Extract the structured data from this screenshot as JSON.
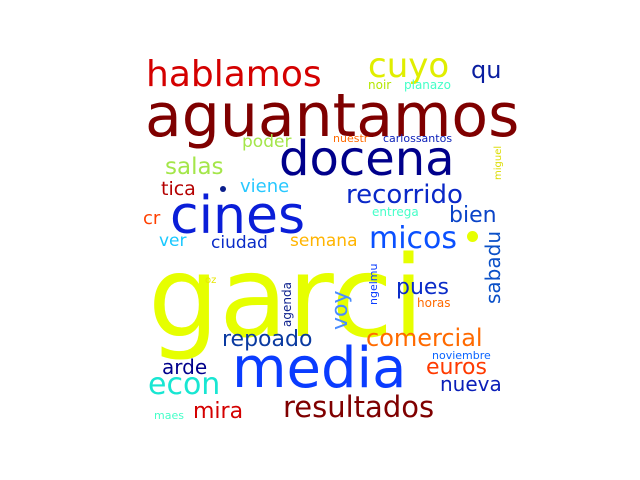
{
  "words": [
    {
      "id": "garci",
      "text": "garci",
      "color": "#e6ff00"
    },
    {
      "id": "aguantamos",
      "text": "aguantamos",
      "color": "#7f0000"
    },
    {
      "id": "media",
      "text": "media",
      "color": "#0a3cff"
    },
    {
      "id": "docena",
      "text": "docena",
      "color": "#00008b"
    },
    {
      "id": "cines",
      "text": "cines",
      "color": "#0a1ed8"
    },
    {
      "id": "hablamos",
      "text": "hablamos",
      "color": "#d40000"
    },
    {
      "id": "cuyo",
      "text": "cuyo",
      "color": "#e0ee00"
    },
    {
      "id": "resultados",
      "text": "resultados",
      "color": "#7f0000"
    },
    {
      "id": "micos",
      "text": "micos",
      "color": "#0a50ff"
    },
    {
      "id": "recorrido",
      "text": "recorrido",
      "color": "#0a28c8"
    },
    {
      "id": "econ",
      "text": "econ",
      "color": "#18e6d2"
    },
    {
      "id": "comercial",
      "text": "comercial",
      "color": "#ff6a00"
    },
    {
      "id": "repoado",
      "text": "repoado",
      "color": "#0a3aa0"
    },
    {
      "id": "salas",
      "text": "salas",
      "color": "#a4e64a"
    },
    {
      "id": "qu",
      "text": "qu",
      "color": "#0a1ea0"
    },
    {
      "id": "bien",
      "text": "bien",
      "color": "#0a44c8"
    },
    {
      "id": "pues",
      "text": "pues",
      "color": "#0a2cc8"
    },
    {
      "id": "euros",
      "text": "euros",
      "color": "#ff3a00"
    },
    {
      "id": "mira",
      "text": "mira",
      "color": "#d40000"
    },
    {
      "id": "voy",
      "text": "voy",
      "color": "#4a8cff"
    },
    {
      "id": "sabadu",
      "text": "sabadu",
      "color": "#0a50c8"
    },
    {
      "id": "nueva",
      "text": "nueva",
      "color": "#0a1eb8"
    },
    {
      "id": "arde",
      "text": "arde",
      "color": "#00008b"
    },
    {
      "id": "tica",
      "text": "tica",
      "color": "#b40000"
    },
    {
      "id": "viene",
      "text": "viene",
      "color": "#28c8ff"
    },
    {
      "id": "poder",
      "text": "poder",
      "color": "#a4e64a"
    },
    {
      "id": "ciudad",
      "text": "ciudad",
      "color": "#0a2cc8"
    },
    {
      "id": "semana",
      "text": "semana",
      "color": "#ffb400"
    },
    {
      "id": "ver",
      "text": "ver",
      "color": "#18c8ff"
    },
    {
      "id": "cr",
      "text": "cr",
      "color": "#ff4000"
    },
    {
      "id": "noir",
      "text": "noir",
      "color": "#b4e600"
    },
    {
      "id": "planazo",
      "text": "planazo",
      "color": "#44ffc8"
    },
    {
      "id": "nuestr",
      "text": "nuestr",
      "color": "#ff6a00"
    },
    {
      "id": "carlossantos",
      "text": "carlossantos",
      "color": "#0a1eb8"
    },
    {
      "id": "miguel",
      "text": "miguel",
      "color": "#dcdc00"
    },
    {
      "id": "entrega",
      "text": "entrega",
      "color": "#44ffc8"
    },
    {
      "id": "agenda",
      "text": "agenda",
      "color": "#0a1e8c"
    },
    {
      "id": "ngelmu",
      "text": "ngelmu",
      "color": "#0a3cff"
    },
    {
      "id": "horas",
      "text": "horas",
      "color": "#ff6a00"
    },
    {
      "id": "oz",
      "text": "oz",
      "color": "#e6e600"
    },
    {
      "id": "noviembre",
      "text": "noviembre",
      "color": "#0a64ff"
    },
    {
      "id": "maes",
      "text": "maes",
      "color": "#44ffc8"
    }
  ],
  "dots": [
    {
      "id": "dot-cines",
      "color": "#0a1e8c"
    },
    {
      "id": "dot-micos",
      "color": "#e6ff00"
    }
  ]
}
